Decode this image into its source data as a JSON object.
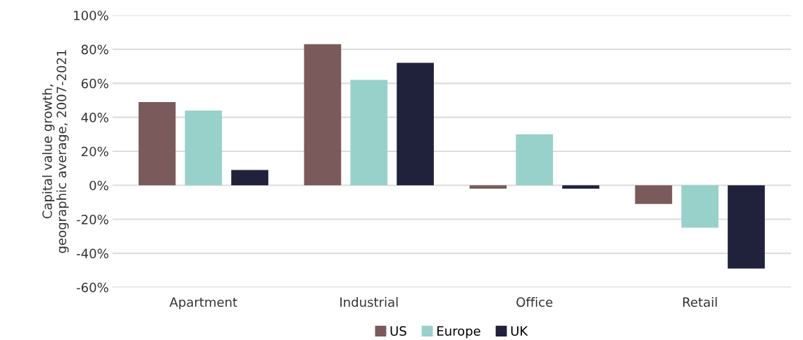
{
  "chart_data": {
    "type": "bar",
    "ylabel": "Capital value growth,\ngeographic average, 2007-2021",
    "categories": [
      "Apartment",
      "Industrial",
      "Office",
      "Retail"
    ],
    "series": [
      {
        "name": "US",
        "color": "#7a5a5a",
        "values": [
          49,
          83,
          -2,
          -11
        ]
      },
      {
        "name": "Europe",
        "color": "#98d1ca",
        "values": [
          44,
          62,
          30,
          -25
        ]
      },
      {
        "name": "UK",
        "color": "#20213b",
        "values": [
          9,
          72,
          -2,
          -49
        ]
      }
    ],
    "ylim": [
      -60,
      100
    ],
    "yticks": [
      {
        "value": -60,
        "label": "-60%"
      },
      {
        "value": -40,
        "label": "-40%"
      },
      {
        "value": -20,
        "label": "-20%"
      },
      {
        "value": 0,
        "label": "0%"
      },
      {
        "value": 20,
        "label": "20%"
      },
      {
        "value": 40,
        "label": "40%"
      },
      {
        "value": 60,
        "label": "60%"
      },
      {
        "value": 80,
        "label": "80%"
      },
      {
        "value": 100,
        "label": "100%"
      }
    ],
    "grid": "y",
    "legend": "bottom"
  }
}
